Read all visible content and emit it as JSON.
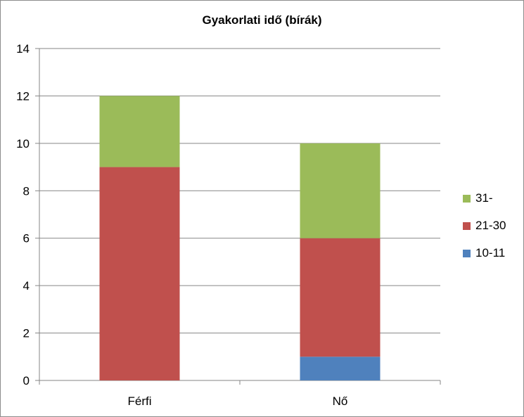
{
  "chart_data": {
    "type": "bar",
    "stacked": true,
    "title": "Gyakorlati idő (bírák)",
    "categories": [
      "Férfi",
      "Nő"
    ],
    "series": [
      {
        "name": "10-11",
        "values": [
          0,
          1
        ],
        "color": "#4f81bd"
      },
      {
        "name": "21-30",
        "values": [
          9,
          5
        ],
        "color": "#c0504d"
      },
      {
        "name": "31-",
        "values": [
          3,
          4
        ],
        "color": "#9bbb59"
      }
    ],
    "ylim": [
      0,
      14
    ],
    "yticks": [
      "0",
      "2",
      "4",
      "6",
      "8",
      "10",
      "12",
      "14"
    ],
    "grid": true,
    "legend_position": "right",
    "legend_order": [
      "31-",
      "21-30",
      "10-11"
    ]
  }
}
